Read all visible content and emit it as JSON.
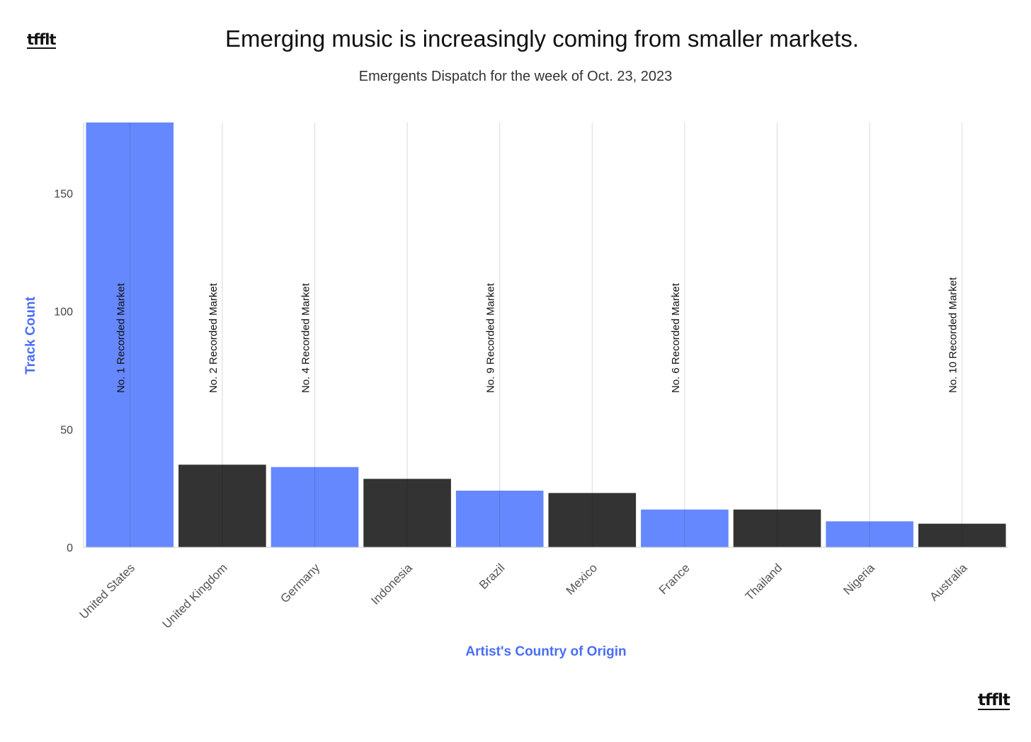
{
  "logo_text": "tfflt",
  "chart_data": {
    "type": "bar",
    "title": "Emerging music is increasingly coming from smaller markets.",
    "subtitle": "Emergents Dispatch for the week of Oct. 23, 2023",
    "xlabel": "Artist's Country of Origin",
    "ylabel": "Track Count",
    "ylim": [
      0,
      180
    ],
    "yticks": [
      0,
      50,
      100,
      150
    ],
    "grid": true,
    "legend": "none",
    "colors": {
      "blue": "#6688fe",
      "dark": "#333333",
      "axis_label": "#4a6ef5"
    },
    "categories": [
      "United States",
      "United Kingdom",
      "Germany",
      "Indonesia",
      "Brazil",
      "Mexico",
      "France",
      "Thailand",
      "Nigeria",
      "Australia"
    ],
    "values": [
      180,
      35,
      34,
      29,
      24,
      23,
      16,
      16,
      11,
      10
    ],
    "bar_colors": [
      "blue",
      "dark",
      "blue",
      "dark",
      "blue",
      "dark",
      "blue",
      "dark",
      "blue",
      "dark"
    ],
    "annotations": [
      {
        "category": "United States",
        "text": "No. 1 Recorded Market"
      },
      {
        "category": "United Kingdom",
        "text": "No. 2 Recorded Market"
      },
      {
        "category": "Germany",
        "text": "No. 4 Recorded Market"
      },
      {
        "category": "Brazil",
        "text": "No. 9 Recorded Market"
      },
      {
        "category": "France",
        "text": "No. 6 Recorded Market"
      },
      {
        "category": "Australia",
        "text": "No. 10 Recorded Market"
      }
    ]
  }
}
